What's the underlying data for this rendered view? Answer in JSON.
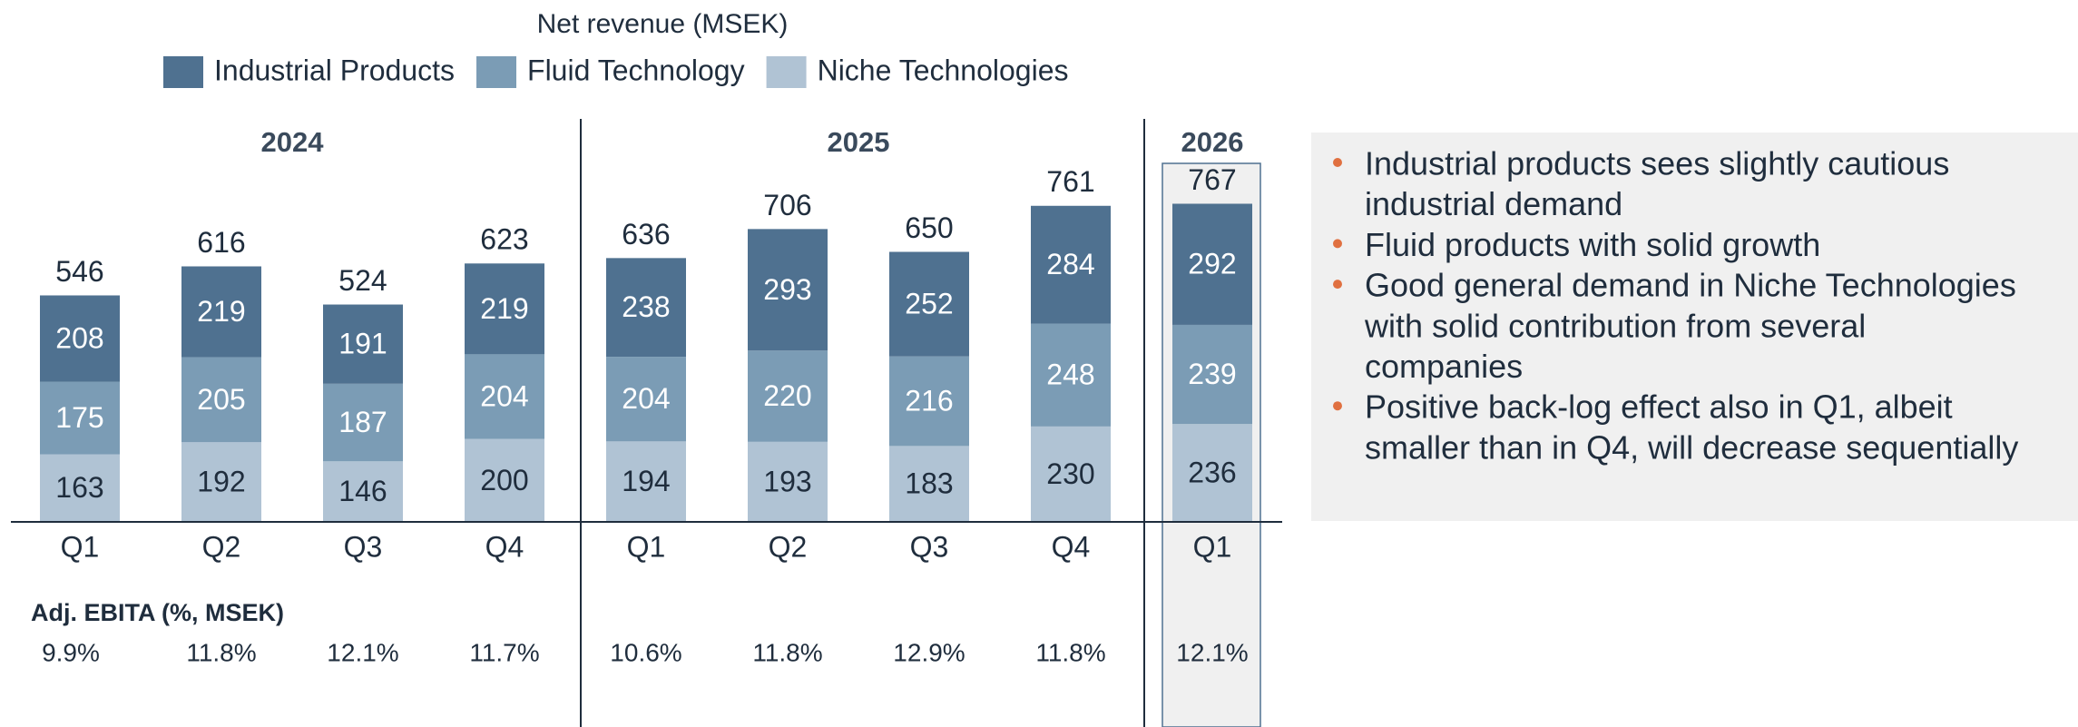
{
  "chart_data": {
    "type": "stacked_bar",
    "title": "Net revenue (MSEK)",
    "groups": [
      {
        "name": "2024",
        "categories": [
          "Q1",
          "Q2",
          "Q3",
          "Q4"
        ]
      },
      {
        "name": "2025",
        "categories": [
          "Q1",
          "Q2",
          "Q3",
          "Q4"
        ]
      },
      {
        "name": "2026",
        "categories": [
          "Q1"
        ]
      }
    ],
    "series": [
      {
        "name": "Niche Technologies",
        "color": "#b0c3d4",
        "values": [
          163,
          192,
          146,
          200,
          194,
          193,
          183,
          230,
          236
        ]
      },
      {
        "name": "Fluid Technology",
        "color": "#7b9cb5",
        "values": [
          175,
          205,
          187,
          204,
          204,
          220,
          216,
          248,
          239
        ]
      },
      {
        "name": "Industrial Products",
        "color": "#4f7190",
        "values": [
          208,
          219,
          191,
          219,
          238,
          293,
          252,
          284,
          292
        ]
      }
    ],
    "totals": [
      546,
      616,
      524,
      623,
      636,
      706,
      650,
      761,
      767
    ],
    "ebita": {
      "label": "Adj. EBITA (%, MSEK)",
      "values": [
        9.9,
        11.8,
        12.1,
        11.7,
        10.6,
        11.8,
        12.9,
        11.8,
        12.1
      ],
      "value_labels": [
        "9.9%",
        "11.8%",
        "12.1%",
        "11.7%",
        "10.6%",
        "11.8%",
        "12.9%",
        "11.8%",
        "12.1%"
      ]
    },
    "notes": [
      [
        "Industrial products sees slightly cautious",
        "industrial demand"
      ],
      [
        "Fluid products with solid growth"
      ],
      [
        "Good general demand in Niche Technologies",
        "with solid contribution from several",
        "companies"
      ],
      [
        "Positive back-log effect also in Q1, albeit",
        "smaller than in Q4, will decrease sequentially"
      ]
    ]
  }
}
